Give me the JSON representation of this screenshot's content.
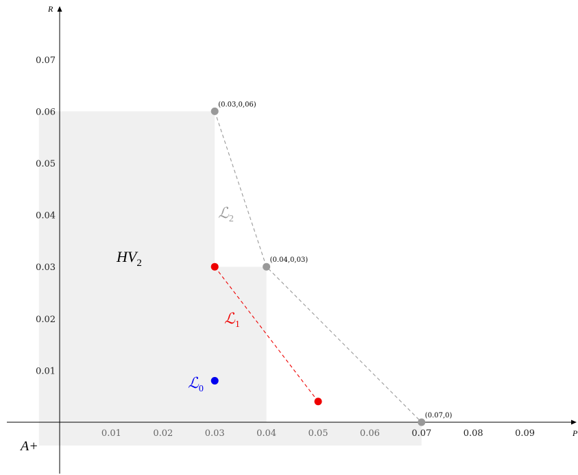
{
  "chart_data": {
    "type": "scatter",
    "axes": {
      "x_label": "P",
      "y_label": "R",
      "xlim": [
        -0.004,
        0.1
      ],
      "ylim": [
        -0.009,
        0.079
      ],
      "x_ticks": [
        "0.01",
        "0.02",
        "0.03",
        "0.04",
        "0.05",
        "0.06",
        "0.07",
        "0.08",
        "0.09"
      ],
      "x_tick_values": [
        0.01,
        0.02,
        0.03,
        0.04,
        0.05,
        0.06,
        0.07,
        0.08,
        0.09
      ],
      "y_ticks": [
        "0.01",
        "0.02",
        "0.03",
        "0.04",
        "0.05",
        "0.06",
        "0.07"
      ],
      "y_tick_values": [
        0.01,
        0.02,
        0.03,
        0.04,
        0.05,
        0.06,
        0.07
      ],
      "grid": false
    },
    "region": {
      "label": "HV",
      "label_sub": "2",
      "color": "#f0f0f0",
      "steps": [
        [
          0.03,
          0.06
        ],
        [
          0.04,
          0.03
        ],
        [
          0.07,
          0.0
        ]
      ],
      "bounds": [
        -0.004,
        -0.0045
      ]
    },
    "series": [
      {
        "name_main": "ℒ",
        "name_sub": "0",
        "color": "#0000ee",
        "dashed": false,
        "points": [
          [
            0.03,
            0.008
          ]
        ]
      },
      {
        "name_main": "ℒ",
        "name_sub": "1",
        "color": "#ee0000",
        "dashed": true,
        "points": [
          [
            0.03,
            0.03
          ],
          [
            0.05,
            0.004
          ]
        ]
      },
      {
        "name_main": "ℒ",
        "name_sub": "2",
        "color": "#999999",
        "dashed": true,
        "points": [
          [
            0.03,
            0.06
          ],
          [
            0.04,
            0.03
          ],
          [
            0.07,
            0.0
          ]
        ]
      }
    ],
    "point_labels": [
      {
        "text": "(0.03,0,06)",
        "x": 0.03,
        "y": 0.06
      },
      {
        "text": "(0.04,0,03)",
        "x": 0.04,
        "y": 0.03
      },
      {
        "text": "(0.07,0)",
        "x": 0.07,
        "y": 0.0
      }
    ],
    "annotations": {
      "aplus": "A+"
    }
  }
}
